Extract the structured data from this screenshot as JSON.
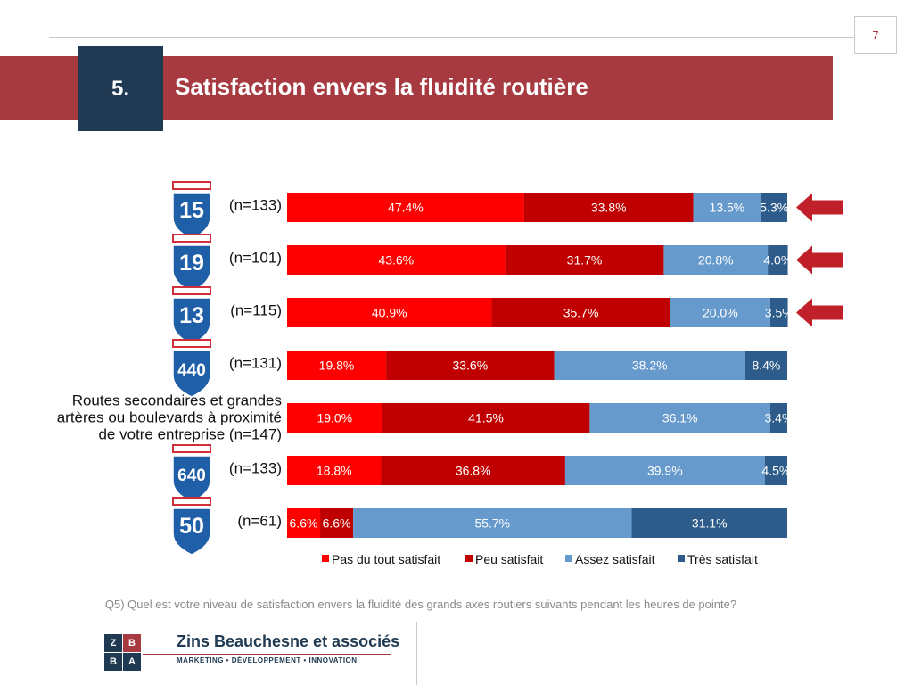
{
  "page_number": "7",
  "section_number": "5.",
  "title": "Satisfaction envers la fluidité routière",
  "footnote": "Q5) Quel est votre niveau de satisfaction envers la fluidité des grands axes routiers suivants pendant les heures de pointe?",
  "logo": {
    "letters": [
      "Z",
      "B",
      "B",
      "A"
    ],
    "name": "Zins Beauchesne et associés",
    "tagline": "MARKETING • DÉVELOPPEMENT • INNOVATION"
  },
  "colors": {
    "title_band": "#a63a40",
    "number_box": "#1f3a52",
    "highlight_arrow": "#c0202a",
    "shield_blue": "#1f5fa8",
    "shield_red": "#d0303a"
  },
  "chart_data": {
    "type": "bar",
    "orientation": "horizontal",
    "stacked": true,
    "xlim": [
      0,
      100
    ],
    "categories": [
      {
        "label": "(n=133)",
        "shield": "15",
        "highlighted": true
      },
      {
        "label": "(n=101)",
        "shield": "19",
        "highlighted": true
      },
      {
        "label": "(n=115)",
        "shield": "13",
        "highlighted": true
      },
      {
        "label": "(n=131)",
        "shield": "440",
        "highlighted": false
      },
      {
        "label": "Routes secondaires et grandes artères ou boulevards à proximité de votre entreprise (n=147)",
        "label_lines": [
          "Routes secondaires et grandes",
          "artères ou boulevards à proximité",
          "de votre entreprise (n=147)"
        ],
        "shield": "",
        "highlighted": false
      },
      {
        "label": "(n=133)",
        "shield": "640",
        "highlighted": false
      },
      {
        "label": "(n=61)",
        "shield": "50",
        "highlighted": false
      }
    ],
    "series": [
      {
        "name": "Pas du tout satisfait",
        "color": "#ff0000",
        "text_color": "#ffffff",
        "values": [
          47.4,
          43.6,
          40.9,
          19.8,
          19.0,
          18.8,
          6.6
        ]
      },
      {
        "name": "Peu satisfait",
        "color": "#c00000",
        "text_color": "#ffffff",
        "values": [
          33.8,
          31.7,
          35.7,
          33.6,
          41.5,
          36.8,
          6.6
        ]
      },
      {
        "name": "Assez satisfait",
        "color": "#6699cc",
        "text_color": "#ffffff",
        "values": [
          13.5,
          20.8,
          20.0,
          38.2,
          36.1,
          39.9,
          55.7
        ]
      },
      {
        "name": "Très satisfait",
        "color": "#2e5c8a",
        "text_color": "#ffffff",
        "values": [
          5.3,
          4.0,
          3.5,
          8.4,
          3.4,
          4.5,
          31.1
        ]
      }
    ],
    "value_labels": [
      [
        "47.4%",
        "33.8%",
        "13.5%",
        "5.3%"
      ],
      [
        "43.6%",
        "31.7%",
        "20.8%",
        "4.0%"
      ],
      [
        "40.9%",
        "35.7%",
        "20.0%",
        "3.5%"
      ],
      [
        "19.8%",
        "33.6%",
        "38.2%",
        "8.4%"
      ],
      [
        "19.0%",
        "41.5%",
        "36.1%",
        "3.4%"
      ],
      [
        "18.8%",
        "36.8%",
        "39.9%",
        "4.5%"
      ],
      [
        "6.6%",
        "6.6%",
        "55.7%",
        "31.1%"
      ]
    ],
    "legend_position": "bottom"
  }
}
